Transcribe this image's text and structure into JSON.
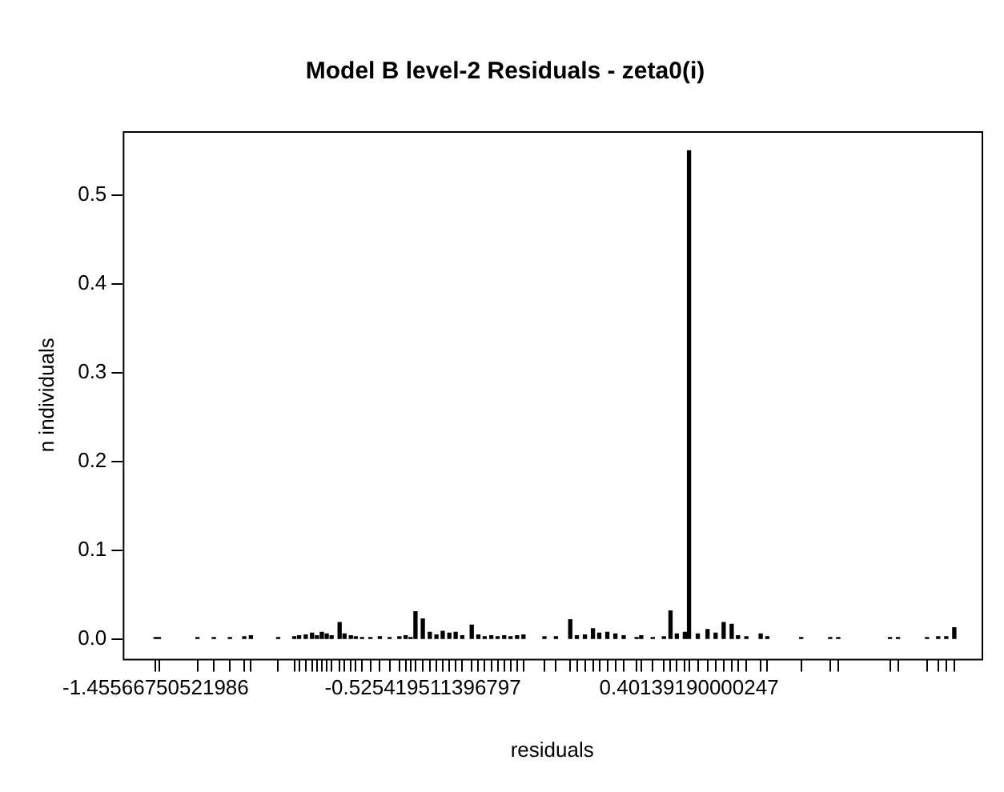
{
  "chart_data": {
    "type": "bar",
    "title": "Model B level-2 Residuals - zeta0(i)",
    "xlabel": "residuals",
    "ylabel": "n individuals",
    "x": [
      -1.45566750521986,
      -1.444,
      -1.31,
      -1.253,
      -1.197,
      -1.147,
      -1.124,
      -1.029,
      -0.973,
      -0.956,
      -0.933,
      -0.911,
      -0.894,
      -0.877,
      -0.86,
      -0.843,
      -0.815,
      -0.798,
      -0.776,
      -0.759,
      -0.737,
      -0.708,
      -0.675,
      -0.641,
      -0.607,
      -0.585,
      -0.568,
      -0.551,
      -0.525419511396797,
      -0.501,
      -0.478,
      -0.456,
      -0.433,
      -0.411,
      -0.388,
      -0.355,
      -0.332,
      -0.31,
      -0.287,
      -0.265,
      -0.242,
      -0.22,
      -0.197,
      -0.175,
      -0.102,
      -0.062,
      -0.012,
      0.011,
      0.039,
      0.067,
      0.089,
      0.117,
      0.145,
      0.174,
      0.219,
      0.235,
      0.275,
      0.314,
      0.337,
      0.359,
      0.387,
      0.40139190000247,
      0.432,
      0.466,
      0.494,
      0.522,
      0.55,
      0.572,
      0.601,
      0.651,
      0.674,
      0.792,
      0.893,
      0.921,
      1.101,
      1.129,
      1.23,
      1.269,
      1.297,
      1.325
    ],
    "values": [
      0.002,
      0.002,
      0.002,
      0.002,
      0.002,
      0.003,
      0.004,
      0.002,
      0.003,
      0.004,
      0.005,
      0.007,
      0.004,
      0.008,
      0.006,
      0.004,
      0.019,
      0.006,
      0.004,
      0.003,
      0.002,
      0.002,
      0.003,
      0.002,
      0.003,
      0.004,
      0.002,
      0.031,
      0.023,
      0.008,
      0.005,
      0.009,
      0.007,
      0.008,
      0.004,
      0.016,
      0.005,
      0.003,
      0.004,
      0.003,
      0.004,
      0.003,
      0.004,
      0.005,
      0.003,
      0.003,
      0.022,
      0.004,
      0.005,
      0.012,
      0.007,
      0.008,
      0.006,
      0.004,
      0.002,
      0.004,
      0.002,
      0.003,
      0.032,
      0.006,
      0.008,
      0.55,
      0.006,
      0.011,
      0.007,
      0.019,
      0.017,
      0.004,
      0.003,
      0.006,
      0.003,
      0.002,
      0.002,
      0.002,
      0.002,
      0.002,
      0.002,
      0.003,
      0.003,
      0.013
    ],
    "color": "#000000",
    "xlim": [
      -1.57,
      1.42
    ],
    "xticks": [
      -1.45566750521986,
      {
        "value": -1.444,
        "label": null
      },
      {
        "value": -1.31,
        "label": null
      },
      {
        "value": -1.253,
        "label": null
      },
      {
        "value": -1.197,
        "label": null
      },
      {
        "value": -1.147,
        "label": null
      },
      {
        "value": -1.124,
        "label": null
      },
      {
        "value": -1.029,
        "label": null
      },
      {
        "value": -0.973,
        "label": null
      },
      {
        "value": -0.956,
        "label": null
      },
      {
        "value": -0.933,
        "label": null
      },
      {
        "value": -0.911,
        "label": null
      },
      {
        "value": -0.894,
        "label": null
      },
      {
        "value": -0.877,
        "label": null
      },
      {
        "value": -0.86,
        "label": null
      },
      {
        "value": -0.843,
        "label": null
      },
      {
        "value": -0.815,
        "label": null
      },
      {
        "value": -0.798,
        "label": null
      },
      {
        "value": -0.776,
        "label": null
      },
      {
        "value": -0.759,
        "label": null
      },
      {
        "value": -0.737,
        "label": null
      },
      {
        "value": -0.708,
        "label": null
      },
      {
        "value": -0.675,
        "label": null
      },
      {
        "value": -0.641,
        "label": null
      },
      {
        "value": -0.607,
        "label": null
      },
      {
        "value": -0.585,
        "label": null
      },
      {
        "value": -0.568,
        "label": null
      },
      {
        "value": -0.551,
        "label": null
      },
      -0.525419511396797,
      {
        "value": -0.501,
        "label": null
      },
      {
        "value": -0.478,
        "label": null
      },
      {
        "value": -0.456,
        "label": null
      },
      {
        "value": -0.433,
        "label": null
      },
      {
        "value": -0.411,
        "label": null
      },
      {
        "value": -0.388,
        "label": null
      },
      {
        "value": -0.355,
        "label": null
      },
      {
        "value": -0.332,
        "label": null
      },
      {
        "value": -0.31,
        "label": null
      },
      {
        "value": -0.287,
        "label": null
      },
      {
        "value": -0.265,
        "label": null
      },
      {
        "value": -0.242,
        "label": null
      },
      {
        "value": -0.22,
        "label": null
      },
      {
        "value": -0.197,
        "label": null
      },
      {
        "value": -0.175,
        "label": null
      },
      {
        "value": -0.102,
        "label": null
      },
      {
        "value": -0.062,
        "label": null
      },
      {
        "value": -0.012,
        "label": null
      },
      {
        "value": 0.011,
        "label": null
      },
      {
        "value": 0.039,
        "label": null
      },
      {
        "value": 0.067,
        "label": null
      },
      {
        "value": 0.089,
        "label": null
      },
      {
        "value": 0.117,
        "label": null
      },
      {
        "value": 0.145,
        "label": null
      },
      {
        "value": 0.174,
        "label": null
      },
      {
        "value": 0.219,
        "label": null
      },
      {
        "value": 0.235,
        "label": null
      },
      {
        "value": 0.275,
        "label": null
      },
      {
        "value": 0.314,
        "label": null
      },
      {
        "value": 0.337,
        "label": null
      },
      {
        "value": 0.359,
        "label": null
      },
      {
        "value": 0.387,
        "label": null
      },
      0.40139190000247,
      {
        "value": 0.432,
        "label": null
      },
      {
        "value": 0.466,
        "label": null
      },
      {
        "value": 0.494,
        "label": null
      },
      {
        "value": 0.522,
        "label": null
      },
      {
        "value": 0.55,
        "label": null
      },
      {
        "value": 0.572,
        "label": null
      },
      {
        "value": 0.601,
        "label": null
      },
      {
        "value": 0.651,
        "label": null
      },
      {
        "value": 0.674,
        "label": null
      },
      {
        "value": 0.792,
        "label": null
      },
      {
        "value": 0.893,
        "label": null
      },
      {
        "value": 0.921,
        "label": null
      },
      {
        "value": 1.101,
        "label": null
      },
      {
        "value": 1.129,
        "label": null
      },
      {
        "value": 1.23,
        "label": null
      },
      {
        "value": 1.269,
        "label": null
      },
      {
        "value": 1.297,
        "label": null
      },
      {
        "value": 1.325,
        "label": null
      }
    ],
    "ylim": [
      -0.022,
      0.572
    ],
    "yticks": [
      {
        "value": 0,
        "label": "0.0"
      },
      0.1,
      0.2,
      0.3,
      0.4,
      0.5
    ]
  }
}
